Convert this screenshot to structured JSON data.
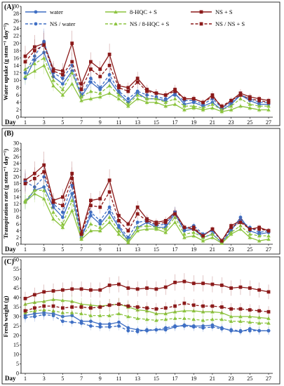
{
  "figure": {
    "legend": [
      {
        "name": "water",
        "color": "#3f6fc4",
        "dash": false,
        "marker": "circle"
      },
      {
        "name": "8-HQC + S",
        "color": "#8cc43f",
        "dash": false,
        "marker": "triangle"
      },
      {
        "name": "NS + S",
        "color": "#8b1a1a",
        "dash": false,
        "marker": "square"
      },
      {
        "name": "NS / water",
        "color": "#3f6fc4",
        "dash": true,
        "marker": "circle"
      },
      {
        "name": "NS / 8-HQC + S",
        "color": "#8cc43f",
        "dash": true,
        "marker": "triangle"
      },
      {
        "name": "NS / NS + S",
        "color": "#8b1a1a",
        "dash": true,
        "marker": "square"
      }
    ]
  },
  "chart_data": [
    {
      "type": "line",
      "panel_label": "(A)",
      "ylabel": "Water uptake (g stem⁻¹ day⁻¹)",
      "xlabel": "Day",
      "ylim": [
        0,
        30
      ],
      "ytick_step": 2,
      "x_tick_labels": [
        "1",
        "3",
        "5",
        "7",
        "9",
        "11",
        "13",
        "15",
        "17",
        "19",
        "21",
        "23",
        "25",
        "27"
      ],
      "x": [
        1,
        2,
        3,
        4,
        5,
        6,
        7,
        8,
        9,
        10,
        11,
        12,
        13,
        14,
        15,
        16,
        17,
        18,
        19,
        20,
        21,
        22,
        23,
        24,
        25,
        26,
        27
      ],
      "series": [
        {
          "name": "water",
          "values": [
            10.5,
            15.5,
            17.5,
            11,
            9,
            12.5,
            5.5,
            9.5,
            7.5,
            10,
            6.5,
            4,
            6.5,
            5,
            5,
            4.5,
            6.5,
            3.5,
            4,
            3,
            4,
            2,
            3.5,
            6,
            4.5,
            3.5,
            3.5
          ]
        },
        {
          "name": "8-HQC + S",
          "values": [
            11,
            12.5,
            14,
            8.5,
            6,
            9,
            4.5,
            5,
            5.5,
            6.5,
            5,
            3,
            5,
            4,
            4,
            3,
            3.5,
            2,
            2.5,
            2,
            2.5,
            1.5,
            2,
            3,
            2.5,
            2,
            2
          ]
        },
        {
          "name": "NS + S",
          "values": [
            16.5,
            19,
            20,
            13,
            12.5,
            20,
            9,
            15,
            13,
            17,
            8.5,
            8,
            10.5,
            7.5,
            6.5,
            6,
            7.5,
            5,
            5,
            4,
            6,
            2.5,
            4.5,
            6.5,
            5.5,
            5,
            4.5
          ]
        },
        {
          "name": "NS / water",
          "values": [
            12,
            16.5,
            20.5,
            12,
            10.5,
            14,
            6,
            10.5,
            8,
            11.5,
            7,
            5,
            7,
            6,
            5.5,
            5,
            6,
            4.5,
            4.5,
            3.5,
            5,
            2.5,
            4,
            6,
            5,
            4,
            4
          ]
        },
        {
          "name": "NS / 8-HQC + S",
          "values": [
            13,
            14.5,
            16,
            10,
            7.5,
            12,
            5.5,
            7,
            6.5,
            8.5,
            6,
            3.5,
            6,
            5,
            5,
            4,
            5,
            3,
            3,
            2.5,
            3.5,
            2,
            3,
            5,
            3.5,
            3,
            3
          ]
        },
        {
          "name": "NS / NS + S",
          "values": [
            15,
            18,
            19.5,
            12.5,
            11.5,
            15,
            7.5,
            13,
            11,
            14,
            8,
            7,
            9.5,
            7,
            6.5,
            6,
            7,
            5,
            5,
            4,
            5.5,
            3,
            4.5,
            6,
            5,
            4.5,
            4
          ]
        }
      ]
    },
    {
      "type": "line",
      "panel_label": "(B)",
      "ylabel": "Transpiration rate (g stem⁻¹ day⁻¹)",
      "xlabel": "Day",
      "ylim": [
        0,
        30
      ],
      "ytick_step": 2,
      "x_tick_labels": [
        "1",
        "3",
        "5",
        "7",
        "9",
        "11",
        "13",
        "15",
        "17",
        "19",
        "21",
        "23",
        "25",
        "27"
      ],
      "x": [
        1,
        2,
        3,
        4,
        5,
        6,
        7,
        8,
        9,
        10,
        11,
        12,
        13,
        14,
        15,
        16,
        17,
        18,
        19,
        20,
        21,
        22,
        23,
        24,
        25,
        26,
        27
      ],
      "series": [
        {
          "name": "water",
          "values": [
            12.5,
            16,
            17,
            11,
            8,
            15,
            2,
            8.5,
            6,
            9.5,
            5,
            1,
            5,
            6.5,
            5,
            5,
            9,
            4,
            4.5,
            2,
            3,
            0.5,
            4,
            8,
            4,
            3,
            3.5
          ]
        },
        {
          "name": "8-HQC + S",
          "values": [
            12.5,
            15,
            13.5,
            7.5,
            5,
            10,
            1.5,
            4,
            4,
            6.5,
            3,
            0.5,
            4,
            4.5,
            4.5,
            3.5,
            6.5,
            2,
            2.5,
            1,
            2,
            0.3,
            3,
            4.5,
            2,
            1,
            1.5
          ]
        },
        {
          "name": "NS + S",
          "values": [
            19,
            21,
            23.5,
            13,
            14,
            21,
            3.5,
            13,
            13.5,
            19,
            8.5,
            6,
            11,
            7.5,
            6.5,
            7,
            9.5,
            5,
            4.5,
            2.5,
            4.5,
            1,
            5.5,
            7,
            4.5,
            5,
            4
          ]
        },
        {
          "name": "NS / water",
          "values": [
            18.5,
            17,
            20,
            12,
            9.5,
            17.5,
            2.5,
            9.5,
            7,
            11,
            5.5,
            2,
            6.5,
            7,
            5.5,
            6,
            9.5,
            4.5,
            5.5,
            3,
            4,
            1,
            4.5,
            7,
            5,
            3.5,
            4
          ]
        },
        {
          "name": "NS / 8-HQC + S",
          "values": [
            13,
            16,
            16,
            9.5,
            6,
            13,
            2,
            6,
            5,
            8,
            4,
            1,
            5,
            5.5,
            5,
            4.5,
            8,
            3,
            3.5,
            2,
            3,
            0.5,
            3.5,
            5.5,
            3,
            2.5,
            2.5
          ]
        },
        {
          "name": "NS / NS + S",
          "values": [
            18,
            19.5,
            21.5,
            12.5,
            11.5,
            19.5,
            3,
            11.5,
            11,
            15.5,
            7,
            4,
            9,
            7,
            6,
            6.5,
            9,
            5,
            5,
            2.5,
            4.5,
            1,
            5,
            6.5,
            4.5,
            4.5,
            4
          ]
        }
      ]
    },
    {
      "type": "line",
      "panel_label": "(C)",
      "ylabel": "Fresh weight (g)",
      "xlabel": "Day",
      "ylim": [
        0,
        60
      ],
      "ytick_step": 5,
      "x_tick_labels": [
        "1",
        "3",
        "5",
        "7",
        "9",
        "11",
        "13",
        "15",
        "17",
        "19",
        "21",
        "23",
        "25",
        "27"
      ],
      "x": [
        1,
        2,
        3,
        4,
        5,
        6,
        7,
        8,
        9,
        10,
        11,
        12,
        13,
        14,
        15,
        16,
        17,
        18,
        19,
        20,
        21,
        22,
        23,
        24,
        25,
        26,
        27
      ],
      "series": [
        {
          "name": "water",
          "values": [
            30.5,
            31.5,
            32,
            31.5,
            30,
            30.5,
            27.5,
            27.5,
            26,
            26,
            27,
            24,
            23,
            22.5,
            23,
            23,
            24.5,
            25.5,
            25,
            25,
            25.5,
            24,
            22.5,
            22,
            23.5,
            22.5,
            22.5
          ]
        },
        {
          "name": "8-HQC + S",
          "values": [
            36.5,
            37.5,
            38,
            39,
            38.5,
            38,
            36.5,
            36,
            35.5,
            36,
            36.5,
            35,
            33.5,
            33,
            31.5,
            31.5,
            32.5,
            33,
            33,
            32.5,
            32.5,
            32,
            30,
            30,
            30,
            29.5,
            29
          ]
        },
        {
          "name": "NS + S",
          "values": [
            39.5,
            41.5,
            43,
            43.5,
            44,
            44.5,
            44.5,
            44,
            44,
            46.5,
            47,
            45,
            44.5,
            45,
            44.5,
            45.5,
            48,
            48.5,
            47.5,
            47.5,
            47,
            46.5,
            45,
            45.5,
            45,
            44,
            43
          ]
        },
        {
          "name": "NS / water",
          "values": [
            29.5,
            30,
            31,
            30.5,
            27.5,
            27,
            26.5,
            25,
            24.5,
            24.5,
            25,
            22.5,
            22,
            23,
            23,
            24,
            25,
            25,
            24.5,
            24,
            24.5,
            23.5,
            23,
            22.5,
            22.5,
            22.5,
            22.5
          ]
        },
        {
          "name": "NS / 8-HQC + S",
          "values": [
            32,
            33,
            33.5,
            33,
            32,
            32,
            31.5,
            30.5,
            30.5,
            30.5,
            31.5,
            30,
            29,
            28.5,
            28,
            28.5,
            29,
            29,
            28.5,
            28,
            28.5,
            28.5,
            27.5,
            27.5,
            27,
            26.5,
            26.5
          ]
        },
        {
          "name": "NS / NS + S",
          "values": [
            33,
            34.5,
            35.5,
            35.5,
            34.5,
            35,
            35,
            34.5,
            35,
            36,
            36.5,
            35.5,
            35,
            34.5,
            34,
            34.5,
            35.5,
            37,
            36,
            35.5,
            35.5,
            35,
            34,
            34,
            33.5,
            33,
            32.5
          ]
        }
      ]
    }
  ]
}
